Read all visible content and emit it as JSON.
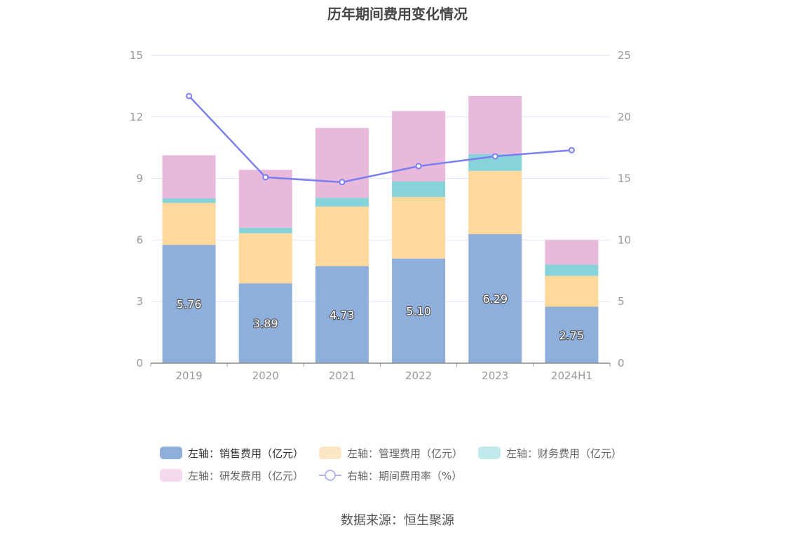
{
  "title": "历年期间费用变化情况",
  "source": "数据来源：恒生聚源",
  "colors": {
    "sales": "#8eaedb",
    "admin": "#fed99b",
    "finance": "#86d3d9",
    "rd": "#e8b9da",
    "rate": "#7b7ef0",
    "axis_text": "#999999",
    "grid": "#e3e3f5"
  },
  "legend": {
    "items": [
      {
        "label": "左轴：销售费用（亿元）",
        "color": "#8eaedb"
      },
      {
        "label": "左轴：管理费用（亿元）",
        "color": "#fde6c4"
      },
      {
        "label": "左轴：财务费用（亿元）",
        "color": "#c2e9ec"
      },
      {
        "label": "左轴：研发费用（亿元）",
        "color": "#f3d9eb"
      },
      {
        "label": "右轴：期间费用率（%）",
        "color": "#b3b6f0"
      }
    ]
  },
  "chart_data": {
    "type": "bar",
    "stacked": true,
    "categories": [
      "2019",
      "2020",
      "2021",
      "2022",
      "2023",
      "2024H1"
    ],
    "left_axis": {
      "min": 0,
      "max": 15,
      "ticks": [
        0,
        3,
        6,
        9,
        12,
        15
      ]
    },
    "right_axis": {
      "min": 0,
      "max": 25,
      "ticks": [
        0,
        5,
        10,
        15,
        20,
        25
      ]
    },
    "series": [
      {
        "name": "左轴：销售费用（亿元）",
        "axis": "left",
        "values": [
          5.76,
          3.89,
          4.73,
          5.1,
          6.29,
          2.75
        ],
        "labels": [
          "5.76",
          "3.89",
          "4.73",
          "5.10",
          "6.29",
          "2.75"
        ]
      },
      {
        "name": "左轴：管理费用（亿元）",
        "axis": "left",
        "values": [
          2.05,
          2.44,
          2.9,
          3.0,
          3.08,
          1.5
        ]
      },
      {
        "name": "左轴：财务费用（亿元）",
        "axis": "left",
        "values": [
          0.22,
          0.27,
          0.43,
          0.75,
          0.82,
          0.55
        ]
      },
      {
        "name": "左轴：研发费用（亿元）",
        "axis": "left",
        "values": [
          2.1,
          2.82,
          3.4,
          3.44,
          2.83,
          1.2
        ]
      },
      {
        "name": "右轴：期间费用率（%）",
        "axis": "right",
        "type": "line",
        "values": [
          21.7,
          15.1,
          14.7,
          16.0,
          16.8,
          17.3
        ]
      }
    ],
    "grid": true
  }
}
